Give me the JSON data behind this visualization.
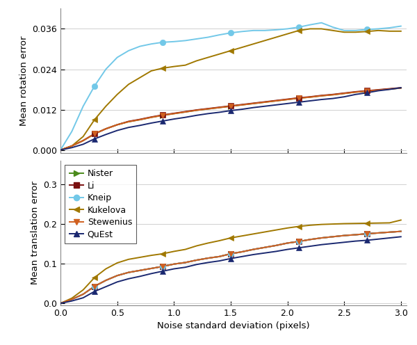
{
  "x_marked": [
    0.27,
    0.9,
    1.5,
    2.1,
    2.7
  ],
  "rot_nister": [
    0,
    0.0012,
    0.0028,
    0.0048,
    0.0063,
    0.0075,
    0.0084,
    0.009,
    0.0097,
    0.0103,
    0.0108,
    0.0113,
    0.0118,
    0.0122,
    0.0126,
    0.013,
    0.0134,
    0.0138,
    0.0142,
    0.0146,
    0.015,
    0.0154,
    0.0157,
    0.0161,
    0.0164,
    0.0168,
    0.0172,
    0.0175,
    0.0178,
    0.0181,
    0.0184
  ],
  "rot_li": [
    0,
    0.0012,
    0.0028,
    0.0048,
    0.0063,
    0.0075,
    0.0085,
    0.0091,
    0.0098,
    0.0104,
    0.0109,
    0.0114,
    0.0119,
    0.0123,
    0.0127,
    0.0131,
    0.0135,
    0.0139,
    0.0143,
    0.0147,
    0.0151,
    0.0155,
    0.0158,
    0.0162,
    0.0165,
    0.0169,
    0.0173,
    0.0176,
    0.0179,
    0.0182,
    0.0185
  ],
  "rot_kneip": [
    0,
    0.0055,
    0.013,
    0.019,
    0.024,
    0.0275,
    0.0295,
    0.0308,
    0.0315,
    0.032,
    0.0322,
    0.0325,
    0.033,
    0.0335,
    0.0342,
    0.0348,
    0.0352,
    0.0355,
    0.0355,
    0.0357,
    0.036,
    0.0365,
    0.0372,
    0.0378,
    0.0365,
    0.0355,
    0.0355,
    0.0358,
    0.036,
    0.0363,
    0.0368
  ],
  "rot_kukelova": [
    0,
    0.0012,
    0.004,
    0.009,
    0.013,
    0.0165,
    0.0195,
    0.0215,
    0.0235,
    0.0243,
    0.0248,
    0.0252,
    0.0265,
    0.0275,
    0.0285,
    0.0295,
    0.0305,
    0.0315,
    0.0325,
    0.0335,
    0.0345,
    0.0355,
    0.036,
    0.036,
    0.0355,
    0.035,
    0.035,
    0.0352,
    0.0355,
    0.0353,
    0.0353
  ],
  "rot_stewenius": [
    0,
    0.0012,
    0.0028,
    0.0048,
    0.0063,
    0.0075,
    0.0084,
    0.009,
    0.0097,
    0.0103,
    0.0108,
    0.0113,
    0.0118,
    0.0122,
    0.0126,
    0.013,
    0.0134,
    0.0138,
    0.0142,
    0.0146,
    0.015,
    0.0154,
    0.0157,
    0.0161,
    0.0164,
    0.0168,
    0.0172,
    0.0175,
    0.0178,
    0.0181,
    0.0184
  ],
  "rot_quest": [
    0,
    0.0007,
    0.0017,
    0.0033,
    0.0046,
    0.0058,
    0.0067,
    0.0073,
    0.008,
    0.0086,
    0.0092,
    0.0097,
    0.0103,
    0.0108,
    0.0112,
    0.0117,
    0.0121,
    0.0126,
    0.013,
    0.0134,
    0.0138,
    0.0142,
    0.0146,
    0.015,
    0.0153,
    0.0158,
    0.0165,
    0.017,
    0.0176,
    0.018,
    0.0185
  ],
  "trans_nister": [
    0,
    0.01,
    0.023,
    0.043,
    0.058,
    0.07,
    0.078,
    0.083,
    0.088,
    0.093,
    0.099,
    0.103,
    0.109,
    0.114,
    0.118,
    0.125,
    0.13,
    0.136,
    0.141,
    0.146,
    0.152,
    0.156,
    0.161,
    0.165,
    0.168,
    0.171,
    0.173,
    0.1755,
    0.1775,
    0.1795,
    0.1815
  ],
  "trans_li": [
    0,
    0.01,
    0.023,
    0.043,
    0.058,
    0.07,
    0.078,
    0.083,
    0.088,
    0.093,
    0.099,
    0.103,
    0.109,
    0.114,
    0.118,
    0.125,
    0.13,
    0.136,
    0.141,
    0.146,
    0.152,
    0.156,
    0.161,
    0.165,
    0.168,
    0.171,
    0.173,
    0.1755,
    0.1775,
    0.1795,
    0.1815
  ],
  "trans_kneip": [
    0,
    0.01,
    0.023,
    0.043,
    0.058,
    0.07,
    0.078,
    0.083,
    0.088,
    0.093,
    0.099,
    0.103,
    0.109,
    0.114,
    0.118,
    0.125,
    0.13,
    0.136,
    0.141,
    0.146,
    0.152,
    0.156,
    0.161,
    0.165,
    0.168,
    0.171,
    0.173,
    0.1755,
    0.1775,
    0.1795,
    0.1815
  ],
  "trans_kukelova": [
    0,
    0.013,
    0.034,
    0.065,
    0.087,
    0.102,
    0.111,
    0.116,
    0.121,
    0.125,
    0.131,
    0.136,
    0.145,
    0.152,
    0.158,
    0.165,
    0.17,
    0.175,
    0.18,
    0.185,
    0.19,
    0.194,
    0.197,
    0.199,
    0.2,
    0.201,
    0.2015,
    0.202,
    0.2025,
    0.203,
    0.21
  ],
  "trans_stewenius": [
    0,
    0.01,
    0.023,
    0.043,
    0.058,
    0.07,
    0.078,
    0.083,
    0.088,
    0.093,
    0.099,
    0.103,
    0.109,
    0.114,
    0.118,
    0.125,
    0.13,
    0.136,
    0.141,
    0.146,
    0.152,
    0.156,
    0.161,
    0.165,
    0.168,
    0.171,
    0.173,
    0.1755,
    0.1775,
    0.1795,
    0.1815
  ],
  "trans_quest": [
    0,
    0.006,
    0.014,
    0.03,
    0.042,
    0.054,
    0.062,
    0.068,
    0.075,
    0.081,
    0.087,
    0.091,
    0.098,
    0.103,
    0.107,
    0.113,
    0.118,
    0.123,
    0.127,
    0.131,
    0.136,
    0.14,
    0.144,
    0.148,
    0.151,
    0.154,
    0.157,
    0.159,
    0.162,
    0.165,
    0.168
  ],
  "colors": {
    "nister": "#4a8a1a",
    "li": "#7a1010",
    "kneip": "#72c8e8",
    "kukelova": "#a07800",
    "stewenius": "#d06020",
    "quest": "#1a2870"
  },
  "markers": {
    "nister": ">",
    "li": "s",
    "kneip": "o",
    "kukelova": "<",
    "stewenius": "v",
    "quest": "^"
  },
  "legend_labels": [
    "Nister",
    "Li",
    "Kneip",
    "Kukelova",
    "Stewenius",
    "QuEst"
  ],
  "xlabel": "Noise standard deviation (pixels)",
  "ylabel_top": "Mean rotation error",
  "ylabel_bottom": "Mean translation error",
  "xlim": [
    0,
    3.05
  ],
  "rot_ylim": [
    -0.001,
    0.042
  ],
  "trans_ylim": [
    -0.005,
    0.36
  ],
  "rot_yticks": [
    0,
    0.012,
    0.024,
    0.036
  ],
  "trans_yticks": [
    0,
    0.1,
    0.2,
    0.3
  ],
  "xticks": [
    0,
    0.5,
    1.0,
    1.5,
    2.0,
    2.5,
    3.0
  ],
  "grid_color": "#d0d0d0",
  "bg_color": "#ffffff"
}
